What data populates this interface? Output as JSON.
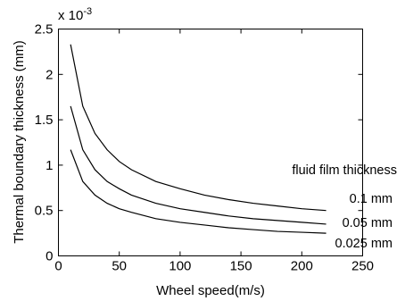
{
  "chart_data": {
    "type": "line",
    "title": "",
    "xlabel": "Wheel speed(m/s)",
    "ylabel": "Thermal boundary thickness (mm)",
    "y_multiplier_label": "x 10",
    "y_multiplier_exponent": "-3",
    "xlim": [
      0,
      250
    ],
    "ylim": [
      0,
      2.5
    ],
    "xticks": [
      0,
      50,
      100,
      150,
      200,
      250
    ],
    "xtick_labels": [
      "0",
      "50",
      "100",
      "150",
      "200",
      "250"
    ],
    "yticks": [
      0,
      0.5,
      1,
      1.5,
      2,
      2.5
    ],
    "ytick_labels": [
      "0",
      "0.5",
      "1",
      "1.5",
      "2",
      "2.5"
    ],
    "grid": false,
    "annotation_title": "fluid film thickness",
    "x": [
      10,
      20,
      30,
      40,
      50,
      60,
      80,
      100,
      120,
      140,
      160,
      180,
      200,
      220
    ],
    "series": [
      {
        "name": "0.1 mm",
        "values": [
          2.33,
          1.65,
          1.35,
          1.17,
          1.04,
          0.95,
          0.82,
          0.74,
          0.67,
          0.62,
          0.58,
          0.55,
          0.52,
          0.5
        ]
      },
      {
        "name": "0.05 mm",
        "values": [
          1.65,
          1.17,
          0.95,
          0.82,
          0.74,
          0.67,
          0.58,
          0.52,
          0.48,
          0.44,
          0.41,
          0.39,
          0.37,
          0.35
        ]
      },
      {
        "name": "0.025 mm",
        "values": [
          1.17,
          0.82,
          0.67,
          0.58,
          0.52,
          0.48,
          0.41,
          0.37,
          0.34,
          0.31,
          0.29,
          0.27,
          0.26,
          0.25
        ]
      }
    ],
    "colors": {
      "line": "#000000",
      "axis": "#000000",
      "background": "#ffffff"
    }
  }
}
